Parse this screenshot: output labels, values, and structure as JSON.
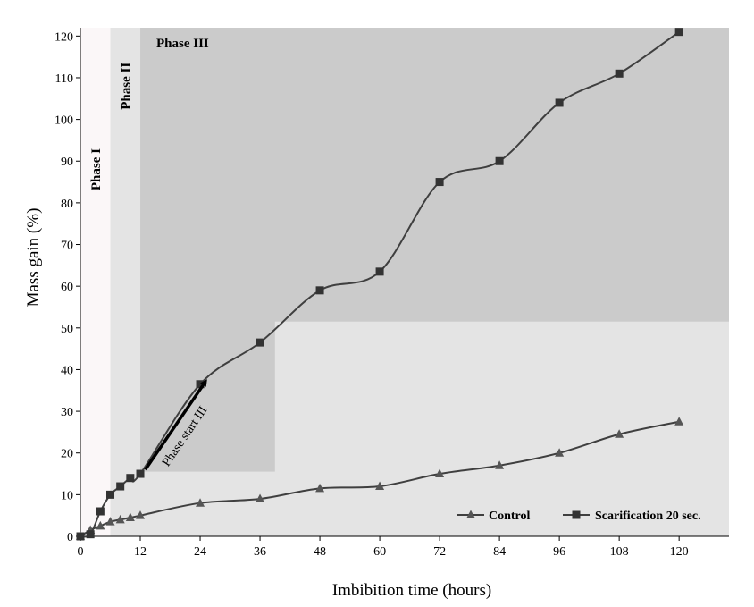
{
  "chart_data": {
    "type": "line",
    "xlabel": "Imbibition time (hours)",
    "ylabel": "Mass gain (%)",
    "xlim": [
      0,
      130
    ],
    "ylim": [
      0,
      122
    ],
    "xticks": [
      0,
      12,
      24,
      36,
      48,
      60,
      72,
      84,
      96,
      108,
      120
    ],
    "yticks": [
      0,
      10,
      20,
      30,
      40,
      50,
      60,
      70,
      80,
      90,
      100,
      110,
      120
    ],
    "grid": false,
    "legend_position": "bottom-right",
    "phase_colors": {
      "phase1": "#fbf7f8",
      "phase2": "#e4e4e4",
      "phase3": "#cbcbcb",
      "lower": "#e4e4e4",
      "line": "#3f3f3f"
    },
    "phases": [
      {
        "label": "Phase I",
        "x_start": 0,
        "x_end": 6,
        "orientation": "vertical"
      },
      {
        "label": "Phase II",
        "x_start": 6,
        "x_end": 12,
        "orientation": "vertical"
      },
      {
        "label": "Phase III",
        "x_start": 12,
        "x_end": 130,
        "orientation": "horizontal"
      }
    ],
    "annotation": {
      "text": "Phase start III",
      "from": [
        13,
        16
      ],
      "to": [
        25,
        37
      ]
    },
    "series": [
      {
        "name": "Control",
        "marker": "triangle",
        "x": [
          0,
          2,
          4,
          6,
          8,
          10,
          12,
          24,
          36,
          48,
          60,
          72,
          84,
          96,
          108,
          120
        ],
        "values": [
          0,
          1.5,
          2.5,
          3.5,
          4,
          4.5,
          5,
          8,
          9,
          11.5,
          12,
          15,
          17,
          20,
          24.5,
          27.5
        ]
      },
      {
        "name": "Scarification 20 sec.",
        "marker": "square",
        "x": [
          0,
          2,
          4,
          6,
          8,
          10,
          12,
          24,
          36,
          48,
          60,
          72,
          84,
          96,
          108,
          120
        ],
        "values": [
          0,
          0.5,
          6,
          10,
          12,
          14,
          15,
          36.5,
          46.5,
          59,
          63.5,
          85,
          90,
          104,
          111,
          121
        ]
      }
    ]
  }
}
